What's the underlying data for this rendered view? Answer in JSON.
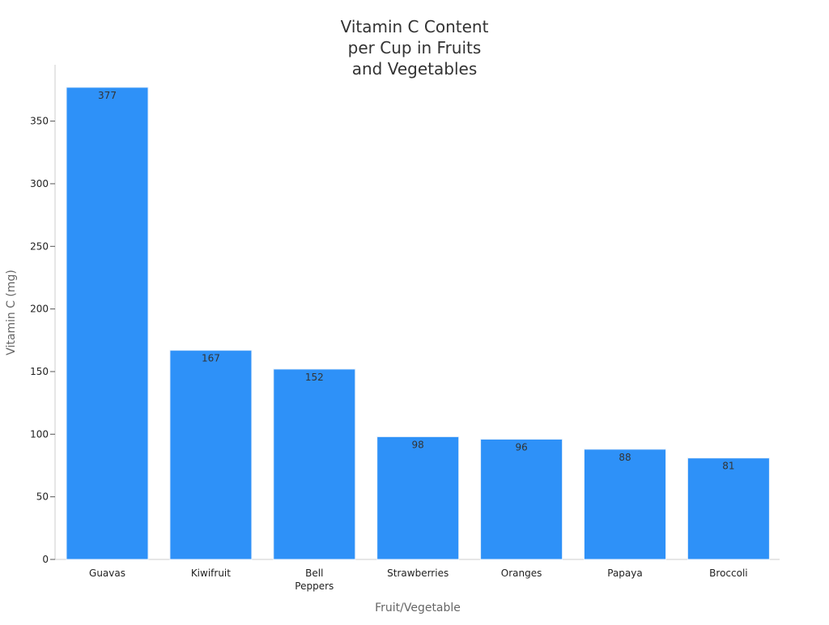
{
  "chart_data": {
    "type": "bar",
    "title": "Vitamin C Content\nper Cup in Fruits\nand Vegetables",
    "xlabel": "Fruit/Vegetable",
    "ylabel": "Vitamin C (mg)",
    "categories": [
      "Guavas",
      "Kiwifruit",
      "Bell\nPeppers",
      "Strawberries",
      "Oranges",
      "Papaya",
      "Broccoli"
    ],
    "values": [
      377,
      167,
      152,
      98,
      96,
      88,
      81
    ],
    "data_labels": [
      "377",
      "167",
      "152",
      "98",
      "96",
      "88",
      "81"
    ],
    "ylim": [
      0,
      395
    ],
    "yticks": [
      0,
      50,
      100,
      150,
      200,
      250,
      300,
      350
    ],
    "grid": false,
    "legend": "none",
    "bar_color": "#2e91f8"
  }
}
